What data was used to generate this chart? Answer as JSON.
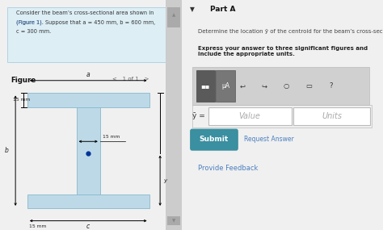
{
  "left_bg": "#e8f2f7",
  "right_bg": "#f7f7f7",
  "problem_text_line1": "Consider the beam’s cross-sectional area shown in",
  "problem_text_line2": "(Figure 1). Suppose that a = 450 mm, b = 600 mm,",
  "problem_text_line3": "c = 300 mm.",
  "figure_label": "Figure",
  "nav_text": "<   1 of 1   >",
  "beam_fill": "#bdd9e8",
  "beam_edge": "#88b8cc",
  "dot_color": "#003399",
  "part_a_label": "Part A",
  "desc_text": "Determine the location ȳ of the centroid for the beam’s cross-sectional area",
  "instr_text": "Express your answer to three significant figures and include the appropriate units.",
  "toolbar_bg": "#c8c8c8",
  "btn_bg": "#6a6a6a",
  "btn2_bg": "#8a8a8a",
  "input_border": "#aaaaaa",
  "value_text": "Value",
  "units_text": "Units",
  "placeholder_color": "#aaaaaa",
  "submit_bg": "#3a8fa0",
  "submit_text": "Submit",
  "req_answer": "Request Answer",
  "feedback_text": "Provide Feedback",
  "feedback_color": "#4a7fc0",
  "scrollbar_bg": "#cccccc",
  "scrollbar_handle": "#aaaaaa",
  "label_15mm_top": "15 mm",
  "label_a": "a",
  "label_b": "b",
  "label_15mm_web": "15 mm",
  "label_y": "y",
  "label_15mm_bot": "15 mm",
  "label_c": "c",
  "ybar_sym": "ȳ ="
}
